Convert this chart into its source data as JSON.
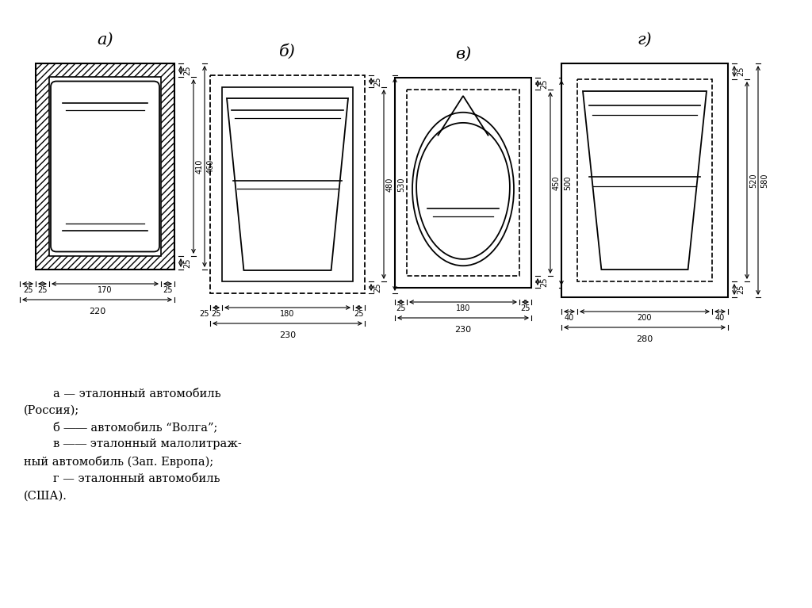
{
  "bg_color": "#ffffff",
  "title_labels": [
    "а)",
    "б)",
    "в)",
    "г)"
  ],
  "legend_text": "        а — эталонный автомобиль\n(Россия);\n        б ―― автомобиль “Волга”;\n        в ―― эталонный малолитраж-\nный автомобиль (Зап. Европа);\n        г — эталонный автомобиль\n(США)."
}
